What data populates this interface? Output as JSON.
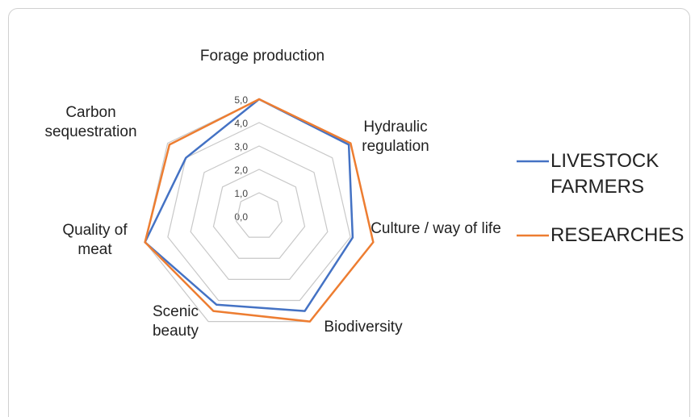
{
  "chart_data": {
    "type": "radar",
    "categories": [
      "Forage production",
      "Hydraulic regulation",
      "Culture / way of life",
      "Biodiversity",
      "Scenic beauty",
      "Quality of meat",
      "Carbon sequestration"
    ],
    "series": [
      {
        "name": "LIVESTOCK FARMERS",
        "color": "#4472c4",
        "values": [
          5.0,
          4.9,
          4.1,
          4.5,
          4.2,
          5.0,
          4.0
        ]
      },
      {
        "name": "RESEARCHES",
        "color": "#ed7d31",
        "values": [
          5.0,
          5.0,
          5.0,
          5.0,
          4.5,
          5.0,
          4.9
        ]
      }
    ],
    "ylim": [
      0,
      5
    ],
    "yticks": [
      {
        "value": 0,
        "label": "0,0"
      },
      {
        "value": 1,
        "label": "1,0"
      },
      {
        "value": 2,
        "label": "2,0"
      },
      {
        "value": 3,
        "label": "3,0"
      },
      {
        "value": 4,
        "label": "4,0"
      },
      {
        "value": 5,
        "label": "5,0"
      }
    ],
    "grid": true,
    "legend": "right"
  }
}
